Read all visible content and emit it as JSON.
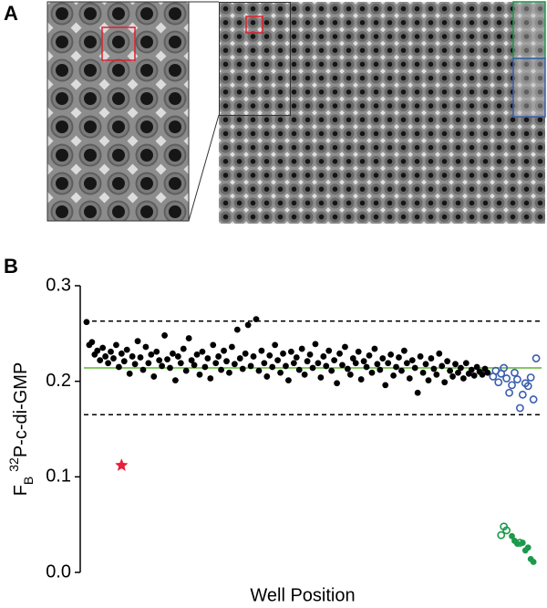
{
  "panel_labels": [
    "A",
    "B"
  ],
  "chart_data": {
    "type": "scatter",
    "y_label": {
      "main": "F",
      "sub": "B",
      "sup": "32",
      "rest": "P-c-di-GMP"
    },
    "x_label": "Well Position",
    "xlim": [
      0,
      170
    ],
    "ylim": [
      0,
      0.3
    ],
    "yticks": [
      {
        "value": 0,
        "label": "0.0"
      },
      0.1,
      0.2,
      0.3
    ],
    "reference_lines": [
      {
        "value": 0.263,
        "color": "#000000",
        "style": "dashed"
      },
      {
        "value": 0.165,
        "color": "#000000",
        "style": "dashed"
      },
      {
        "value": 0.214,
        "color": "#5cb82f",
        "style": "solid"
      }
    ],
    "series": [
      {
        "color": "#000000",
        "marker": "filled",
        "x": [
          1,
          2,
          3,
          4,
          5,
          6,
          7,
          8,
          9,
          10,
          11,
          12,
          13,
          14,
          15,
          16,
          17,
          18,
          19,
          20,
          21,
          22,
          23,
          24,
          25,
          26,
          27,
          28,
          29,
          30,
          31,
          32,
          33,
          34,
          35,
          36,
          37,
          38,
          39,
          40,
          41,
          42,
          43,
          44,
          45,
          46,
          47,
          48,
          49,
          50,
          51,
          52,
          53,
          54,
          55,
          56,
          57,
          58,
          59,
          60,
          61,
          62,
          63,
          64,
          65,
          66,
          67,
          68,
          69,
          70,
          71,
          72,
          73,
          74,
          75,
          76,
          77,
          78,
          79,
          80,
          81,
          82,
          83,
          84,
          85,
          86,
          87,
          88,
          89,
          90,
          91,
          92,
          93,
          94,
          95,
          96,
          97,
          98,
          99,
          100,
          101,
          102,
          103,
          104,
          105,
          106,
          107,
          108,
          109,
          110,
          111,
          112,
          113,
          114,
          115,
          116,
          117,
          118,
          119,
          120,
          121,
          122,
          123,
          124,
          125,
          126,
          127,
          128,
          129,
          130,
          131,
          132,
          133,
          134,
          135,
          136,
          137,
          138,
          139,
          140,
          141,
          142,
          143,
          144,
          145,
          146,
          147,
          148,
          149,
          150
        ],
        "values": [
          0.262,
          0.238,
          0.241,
          0.228,
          0.232,
          0.222,
          0.235,
          0.226,
          0.219,
          0.231,
          0.224,
          0.238,
          0.215,
          0.229,
          0.221,
          0.233,
          0.208,
          0.226,
          0.218,
          0.242,
          0.225,
          0.212,
          0.236,
          0.219,
          0.228,
          0.205,
          0.231,
          0.222,
          0.216,
          0.248,
          0.223,
          0.214,
          0.229,
          0.201,
          0.226,
          0.219,
          0.234,
          0.211,
          0.245,
          0.222,
          0.217,
          0.228,
          0.207,
          0.231,
          0.215,
          0.224,
          0.203,
          0.238,
          0.219,
          0.226,
          0.212,
          0.232,
          0.221,
          0.209,
          0.236,
          0.218,
          0.254,
          0.224,
          0.213,
          0.229,
          0.259,
          0.216,
          0.226,
          0.265,
          0.211,
          0.232,
          0.219,
          0.205,
          0.227,
          0.215,
          0.238,
          0.222,
          0.209,
          0.229,
          0.216,
          0.201,
          0.231,
          0.219,
          0.225,
          0.212,
          0.234,
          0.207,
          0.221,
          0.228,
          0.214,
          0.239,
          0.219,
          0.204,
          0.226,
          0.216,
          0.232,
          0.211,
          0.222,
          0.198,
          0.229,
          0.217,
          0.236,
          0.213,
          0.207,
          0.224,
          0.219,
          0.231,
          0.202,
          0.221,
          0.215,
          0.227,
          0.209,
          0.234,
          0.218,
          0.212,
          0.224,
          0.196,
          0.219,
          0.228,
          0.206,
          0.215,
          0.225,
          0.211,
          0.232,
          0.219,
          0.203,
          0.222,
          0.214,
          0.188,
          0.226,
          0.209,
          0.218,
          0.201,
          0.224,
          0.213,
          0.207,
          0.229,
          0.216,
          0.199,
          0.221,
          0.211,
          0.205,
          0.218,
          0.209,
          0.214,
          0.203,
          0.219,
          0.208,
          0.212,
          0.206,
          0.215,
          0.21,
          0.207,
          0.213,
          0.209
        ]
      },
      {
        "color": "#3a5dae",
        "marker": "open",
        "x": [
          152,
          153,
          154,
          155,
          156,
          157,
          158,
          159,
          160,
          161,
          162,
          163,
          164,
          165,
          166,
          167,
          168
        ],
        "values": [
          0.205,
          0.211,
          0.199,
          0.208,
          0.214,
          0.203,
          0.188,
          0.196,
          0.209,
          0.202,
          0.172,
          0.186,
          0.198,
          0.195,
          0.204,
          0.181,
          0.224
        ]
      },
      {
        "color": "#1a9a4a",
        "marker": "open",
        "x": [
          155,
          156,
          157,
          162
        ],
        "values": [
          0.039,
          0.048,
          0.044,
          0.031
        ]
      },
      {
        "color": "#1a9a4a",
        "marker": "filled",
        "x": [
          159,
          160,
          161,
          163,
          164,
          165,
          166,
          167
        ],
        "values": [
          0.038,
          0.033,
          0.03,
          0.031,
          0.023,
          0.026,
          0.014,
          0.011
        ]
      },
      {
        "color": "#e8203a",
        "marker": "star",
        "x": [
          14
        ],
        "values": [
          0.112
        ]
      }
    ]
  }
}
